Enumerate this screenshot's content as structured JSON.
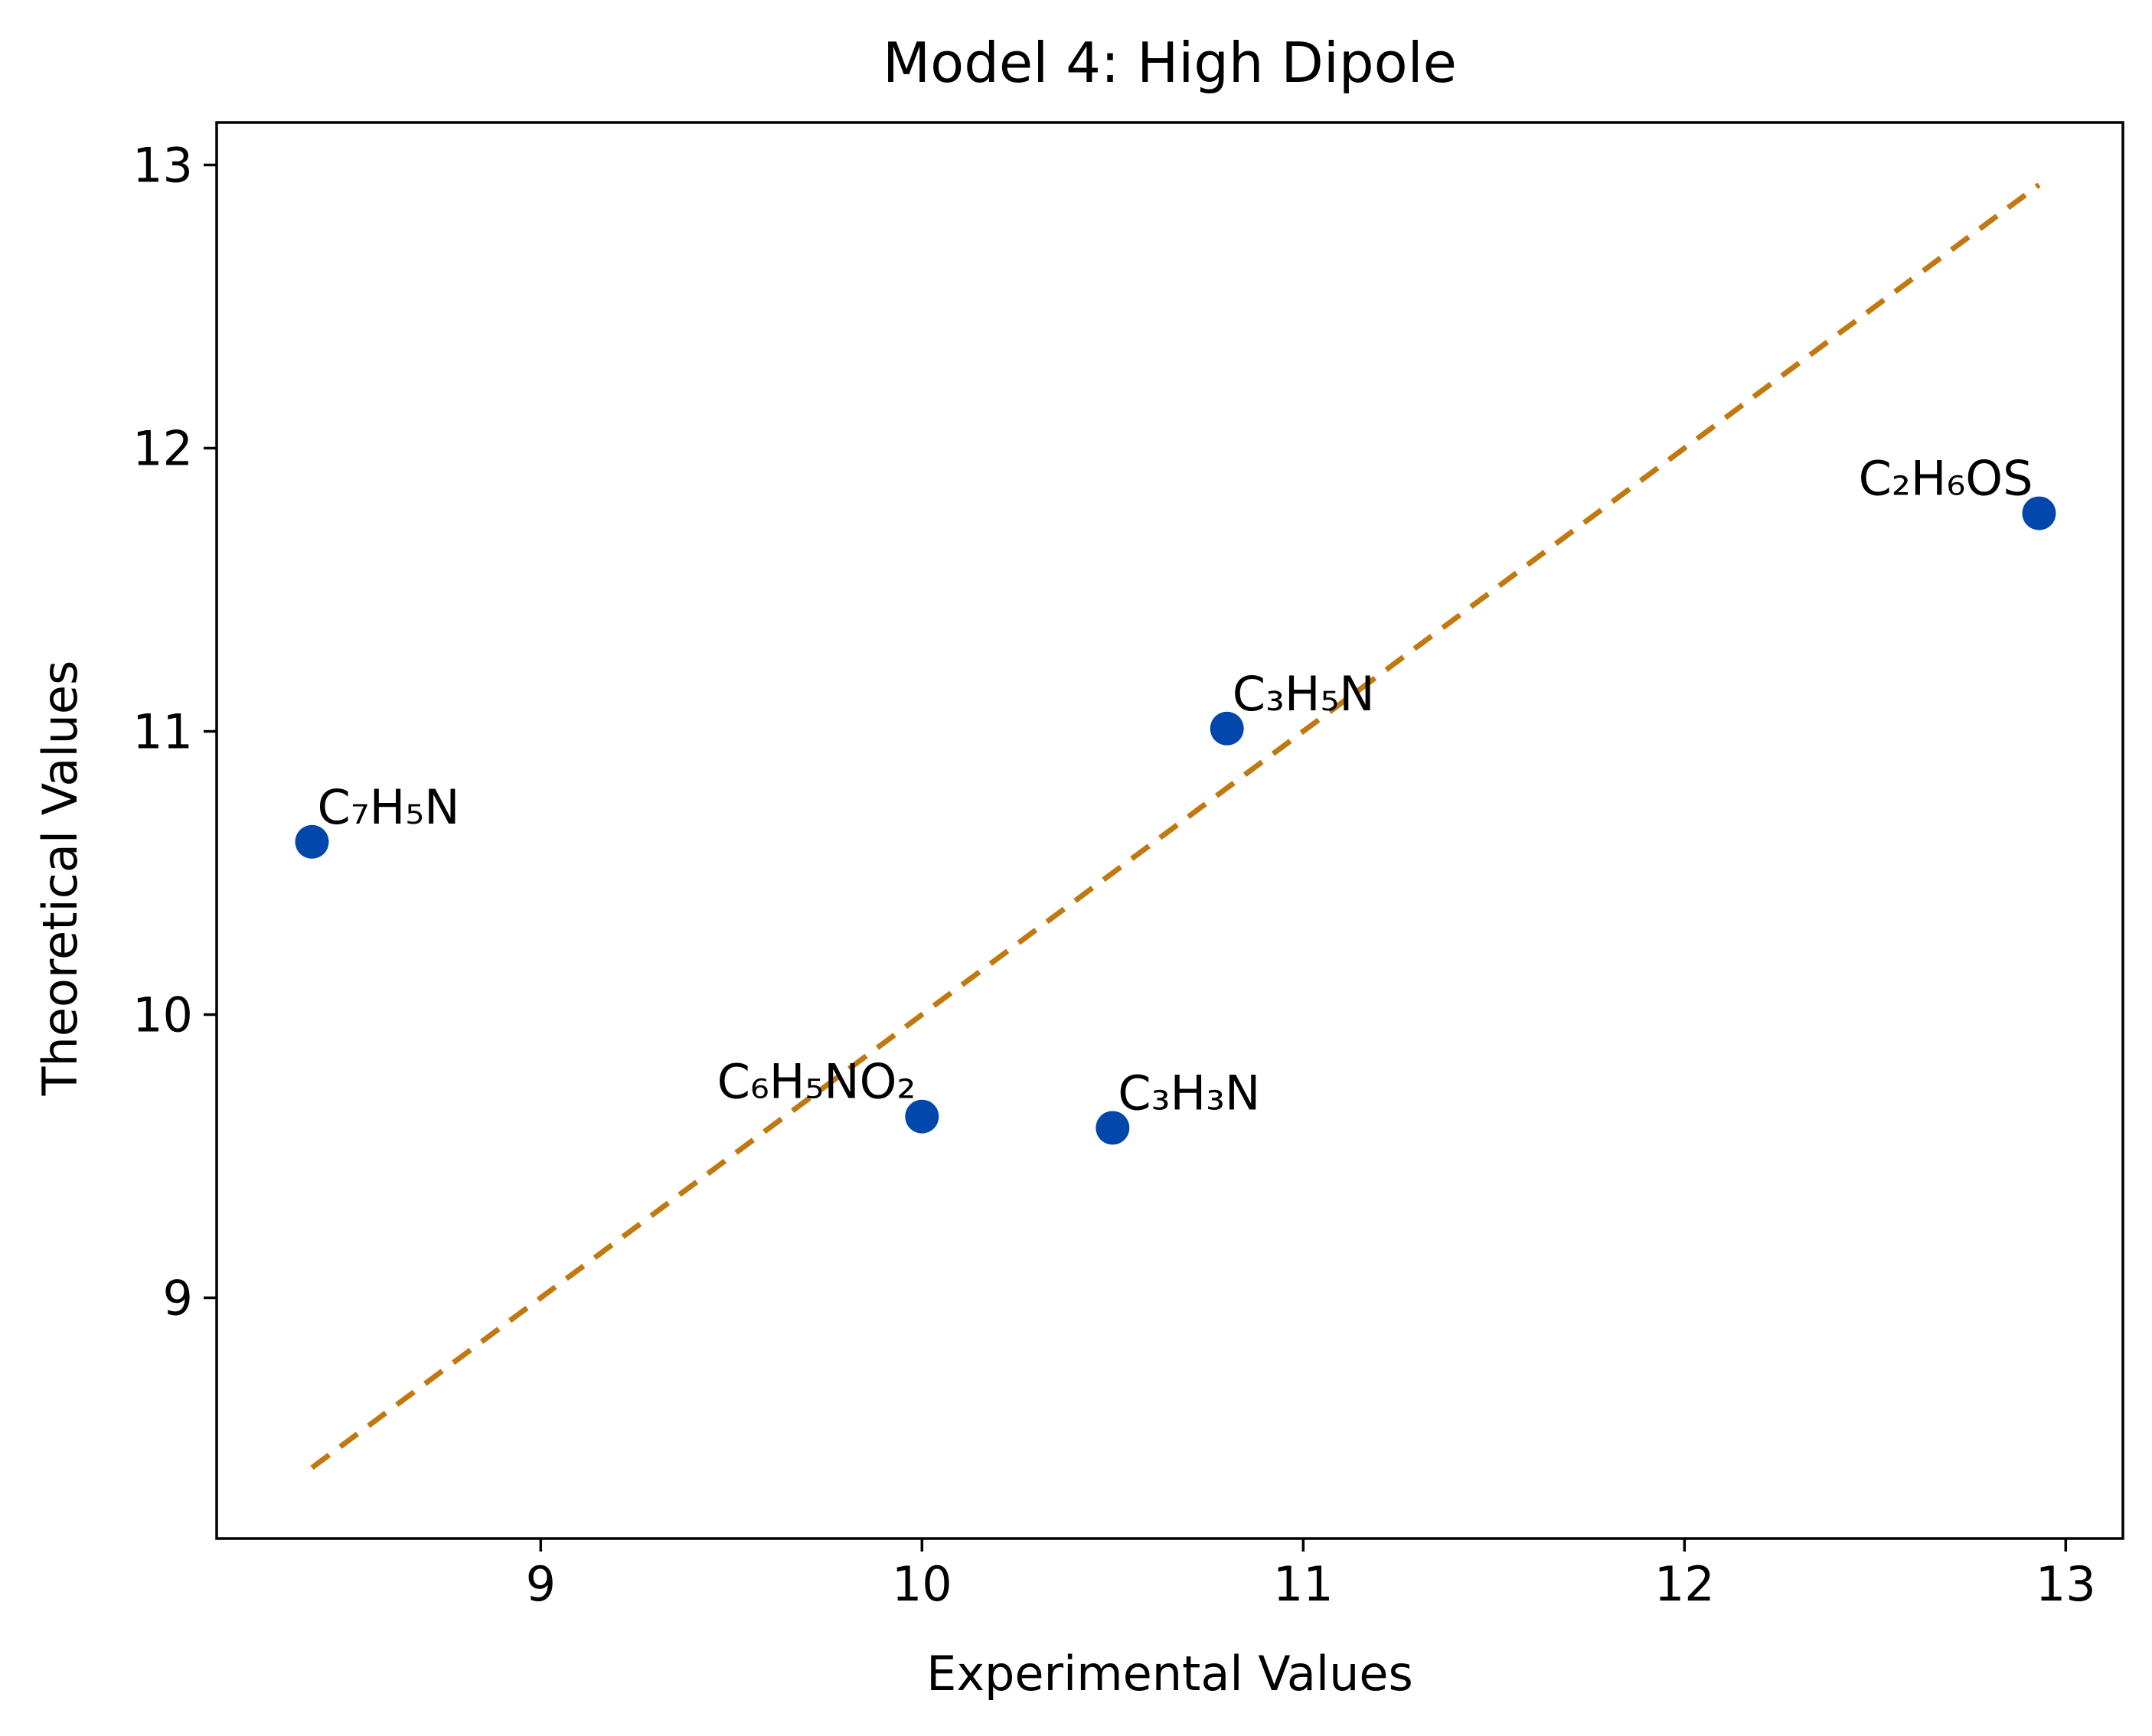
{
  "chart_data": {
    "type": "scatter",
    "title": "Model 4: High Dipole",
    "xlabel": "Experimental Values",
    "ylabel": "Theoretical Values",
    "xlim": [
      8.15,
      13.15
    ],
    "ylim": [
      8.15,
      13.15
    ],
    "xticks": [
      9,
      10,
      11,
      12,
      13
    ],
    "yticks": [
      9,
      10,
      11,
      12,
      13
    ],
    "grid": false,
    "legend": "none",
    "points": [
      {
        "label": "C₇H₅N",
        "x": 8.4,
        "y": 10.61,
        "label_align": "left"
      },
      {
        "label": "C₆H₅NO₂",
        "x": 10.0,
        "y": 9.64,
        "label_align": "right"
      },
      {
        "label": "C₃H₃N",
        "x": 10.5,
        "y": 9.6,
        "label_align": "left"
      },
      {
        "label": "C₃H₅N",
        "x": 10.8,
        "y": 11.01,
        "label_align": "left"
      },
      {
        "label": "C₂H₆OS",
        "x": 12.93,
        "y": 11.77,
        "label_align": "right"
      }
    ],
    "reference_line": {
      "x": [
        8.4,
        12.93
      ],
      "y": [
        8.4,
        12.93
      ],
      "style": "dashed"
    },
    "colors": {
      "points": "#0047ab",
      "reference_line": "#c0780f",
      "axes": "#000000"
    }
  }
}
